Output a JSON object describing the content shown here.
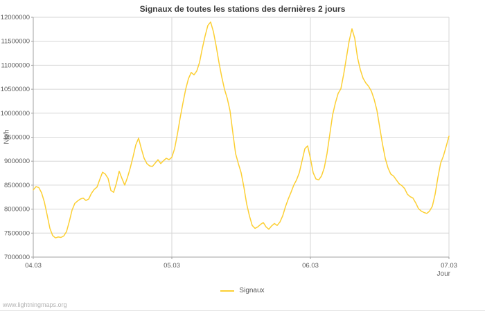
{
  "page": {
    "watermark": "www.lightningmaps.org"
  },
  "chart_data": {
    "type": "line",
    "title": "Signaux de toutes les stations des dernières 2 jours",
    "xlabel": "Jour",
    "ylabel": "Nb/h",
    "xlim": [
      0,
      3
    ],
    "ylim": [
      7000000,
      12000000
    ],
    "grid": true,
    "legend_position": "bottom",
    "y_ticks": [
      7000000,
      7500000,
      8000000,
      8500000,
      9000000,
      9500000,
      10000000,
      10500000,
      11000000,
      11500000,
      12000000
    ],
    "x_ticks": [
      {
        "x": 0,
        "label": "04.03"
      },
      {
        "x": 1,
        "label": "05.03"
      },
      {
        "x": 2,
        "label": "06.03"
      },
      {
        "x": 3,
        "label": "07.03"
      }
    ],
    "series": [
      {
        "name": "Signaux",
        "color": "#fccf33",
        "x_start": 0,
        "x_step": 0.02,
        "values": [
          8400000,
          8470000,
          8450000,
          8340000,
          8150000,
          7880000,
          7600000,
          7450000,
          7400000,
          7420000,
          7410000,
          7440000,
          7530000,
          7740000,
          7980000,
          8120000,
          8170000,
          8210000,
          8230000,
          8180000,
          8210000,
          8330000,
          8410000,
          8460000,
          8620000,
          8770000,
          8730000,
          8640000,
          8390000,
          8350000,
          8540000,
          8790000,
          8640000,
          8500000,
          8660000,
          8860000,
          9090000,
          9340000,
          9480000,
          9260000,
          9060000,
          8950000,
          8900000,
          8890000,
          8960000,
          9030000,
          8950000,
          9010000,
          9060000,
          9030000,
          9080000,
          9260000,
          9560000,
          9900000,
          10210000,
          10500000,
          10720000,
          10850000,
          10800000,
          10880000,
          11060000,
          11350000,
          11610000,
          11830000,
          11900000,
          11700000,
          11400000,
          11060000,
          10760000,
          10500000,
          10310000,
          10050000,
          9600000,
          9160000,
          8950000,
          8760000,
          8460000,
          8110000,
          7860000,
          7660000,
          7600000,
          7630000,
          7680000,
          7720000,
          7630000,
          7580000,
          7650000,
          7700000,
          7660000,
          7730000,
          7860000,
          8050000,
          8210000,
          8350000,
          8500000,
          8610000,
          8760000,
          9010000,
          9260000,
          9320000,
          9060000,
          8760000,
          8630000,
          8610000,
          8690000,
          8860000,
          9160000,
          9560000,
          9960000,
          10210000,
          10410000,
          10510000,
          10810000,
          11160000,
          11510000,
          11760000,
          11560000,
          11160000,
          10910000,
          10730000,
          10630000,
          10560000,
          10460000,
          10290000,
          10060000,
          9710000,
          9360000,
          9060000,
          8860000,
          8730000,
          8690000,
          8610000,
          8530000,
          8490000,
          8430000,
          8310000,
          8260000,
          8230000,
          8130000,
          8010000,
          7960000,
          7930000,
          7910000,
          7960000,
          8060000,
          8310000,
          8660000,
          8960000,
          9110000,
          9310000,
          9520000
        ]
      }
    ]
  }
}
